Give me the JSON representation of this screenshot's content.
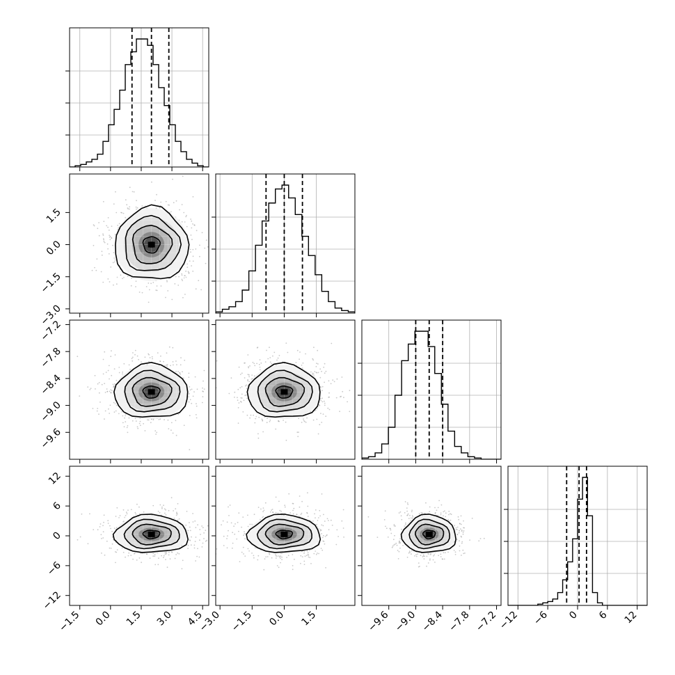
{
  "chart_data": {
    "type": "corner",
    "title": "",
    "parameters": [
      {
        "range": [
          -2.0,
          4.8
        ],
        "ticks": [
          -1.5,
          0.0,
          1.5,
          3.0,
          4.5
        ],
        "tick_labels": [
          "−1.5",
          "0.0",
          "1.5",
          "3.0",
          "4.5"
        ],
        "quantiles": [
          1.05,
          2.0,
          2.85
        ],
        "mean": 2.0,
        "std": 0.9
      },
      {
        "range": [
          -3.2,
          3.3
        ],
        "ticks": [
          -3.0,
          -1.5,
          0.0,
          1.5
        ],
        "tick_labels": [
          "−3.0",
          "−1.5",
          "0.0",
          "1.5"
        ],
        "quantiles": [
          -0.85,
          0.0,
          0.85
        ],
        "mean": 0.0,
        "std": 0.85
      },
      {
        "range": [
          -10.2,
          -7.1
        ],
        "ticks": [
          -9.6,
          -9.0,
          -8.4,
          -7.8,
          -7.2
        ],
        "tick_labels": [
          "−9.6",
          "−9.0",
          "−8.4",
          "−7.8",
          "−7.2"
        ],
        "quantiles": [
          -9.0,
          -8.7,
          -8.4
        ],
        "mean": -8.7,
        "std": 0.3
      },
      {
        "range": [
          -14.0,
          14.0
        ],
        "ticks": [
          -12,
          -6,
          0,
          6,
          12
        ],
        "tick_labels": [
          "−12",
          "−6",
          "0",
          "6",
          "12"
        ],
        "quantiles": [
          -2.2,
          0.3,
          1.8
        ],
        "mean": 0.3,
        "std": 1.9
      }
    ],
    "histograms": [
      [
        0,
        1,
        2,
        4,
        6,
        10,
        20,
        33,
        45,
        60,
        80,
        90,
        100,
        100,
        95,
        80,
        62,
        48,
        33,
        20,
        12,
        6,
        3,
        1,
        0
      ],
      [
        1,
        3,
        5,
        9,
        18,
        33,
        53,
        72,
        86,
        97,
        100,
        90,
        77,
        60,
        45,
        30,
        17,
        9,
        4,
        2,
        1
      ],
      [
        1,
        2,
        5,
        12,
        25,
        50,
        77,
        90,
        100,
        100,
        88,
        67,
        43,
        22,
        10,
        5,
        2,
        1,
        0,
        0,
        0
      ],
      [
        0,
        0,
        0,
        0,
        0,
        0,
        1,
        2,
        3,
        5,
        10,
        20,
        34,
        52,
        83,
        100,
        70,
        10,
        2,
        0,
        0,
        0,
        0,
        0,
        0,
        0,
        0,
        0
      ]
    ],
    "grid": true,
    "contour_levels": 4,
    "scatter_color": "#9a9a9a"
  }
}
